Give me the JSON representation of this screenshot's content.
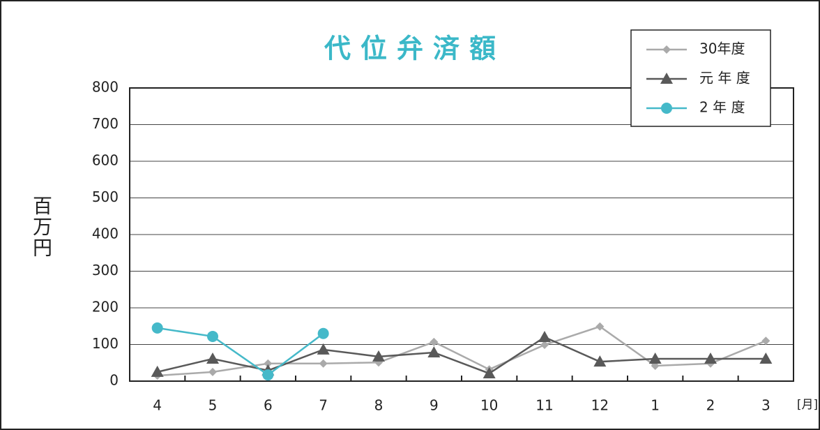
{
  "chart_data": {
    "type": "line",
    "title": "代位弁済額",
    "y_label": "百万円",
    "x_unit": "[月]",
    "categories": [
      "4",
      "5",
      "6",
      "7",
      "8",
      "9",
      "10",
      "11",
      "12",
      "1",
      "2",
      "3"
    ],
    "series": [
      {
        "name": "30年度",
        "color": "#aaaaaa",
        "marker": "diamond",
        "values": [
          15,
          25,
          48,
          48,
          51,
          107,
          32,
          99,
          149,
          42,
          48,
          110
        ]
      },
      {
        "name": "元 年 度",
        "color": "#595959",
        "marker": "triangle",
        "values": [
          25,
          61,
          29,
          86,
          67,
          78,
          21,
          120,
          53,
          61,
          61,
          61
        ]
      },
      {
        "name": "2 年 度",
        "color": "#45b9c9",
        "marker": "circle",
        "values": [
          145,
          122,
          17,
          130,
          null,
          null,
          null,
          null,
          null,
          null,
          null,
          null
        ]
      }
    ],
    "ylim": [
      0,
      800
    ],
    "yticks": [
      0,
      100,
      200,
      300,
      400,
      500,
      600,
      700,
      800
    ],
    "grid": true,
    "legend": "upper right"
  }
}
